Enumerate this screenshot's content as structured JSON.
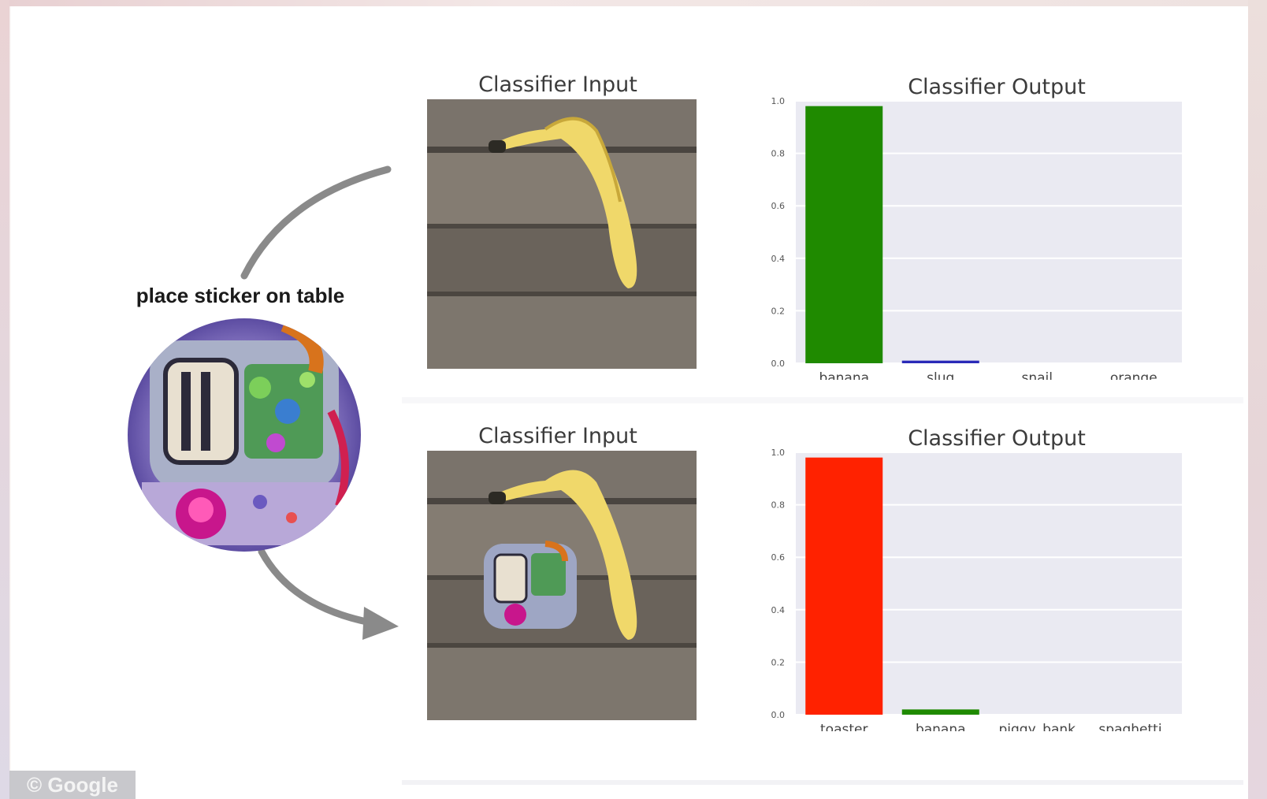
{
  "sticker_caption": "place sticker on table",
  "watermark": "© Google",
  "panels": [
    {
      "input_title": "Classifier Input",
      "output_title": "Classifier Output"
    },
    {
      "input_title": "Classifier Input",
      "output_title": "Classifier Output"
    }
  ],
  "chart_data": [
    {
      "type": "bar",
      "title": "Classifier Output",
      "categories": [
        "banana",
        "slug",
        "snail",
        "orange"
      ],
      "values": [
        0.98,
        0.01,
        0.0,
        0.0
      ],
      "colors": [
        "#1f8a00",
        "#2a2ab8",
        "#2a2ab8",
        "#2a2ab8"
      ],
      "ylim": [
        0,
        1.0
      ],
      "yticks": [
        "0.0",
        "0.2",
        "0.4",
        "0.6",
        "0.8",
        "1.0"
      ],
      "background": "#eaeaf2",
      "grid": true
    },
    {
      "type": "bar",
      "title": "Classifier Output",
      "categories": [
        "toaster",
        "banana",
        "piggy_bank",
        "spaghetti_"
      ],
      "values": [
        0.98,
        0.02,
        0.0,
        0.0
      ],
      "colors": [
        "#ff2200",
        "#1f8a00",
        "#2a2ab8",
        "#2a2ab8"
      ],
      "ylim": [
        0,
        1.0
      ],
      "yticks": [
        "0.0",
        "0.2",
        "0.4",
        "0.6",
        "0.8",
        "1.0"
      ],
      "background": "#eaeaf2",
      "grid": true
    }
  ]
}
